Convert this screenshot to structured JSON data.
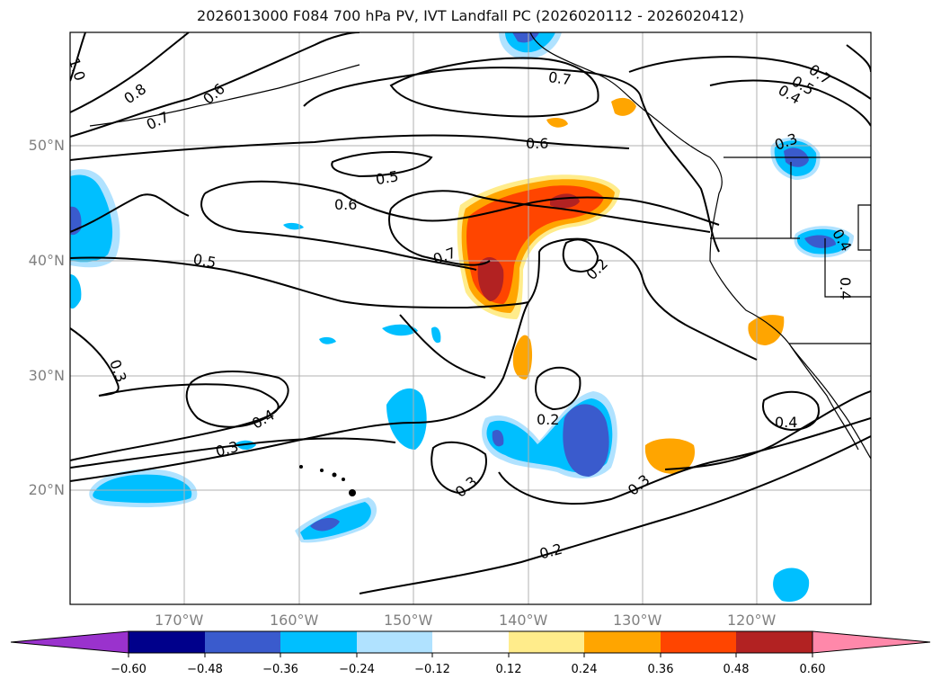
{
  "title": "2026013000 F084 700 hPa PV, IVT Landfall PC (2026020112 - 2026020412)",
  "lat_labels": [
    "50°N",
    "40°N",
    "30°N",
    "20°N"
  ],
  "lon_labels": [
    "170°W",
    "160°W",
    "150°W",
    "140°W",
    "130°W",
    "120°W"
  ],
  "contour_labels": [
    "1.0",
    "0.8",
    "0.7",
    "0.6",
    "0.7",
    "0.6",
    "0.5",
    "0.6",
    "0.5",
    "0.7",
    "0.2",
    "0.7",
    "0.5",
    "0.4",
    "0.3",
    "0.4",
    "0.4",
    "0.3",
    "0.3",
    "0.2",
    "0.3",
    "0.4",
    "0.3",
    "0.2"
  ],
  "colorbar": {
    "ticks": [
      "−0.60",
      "−0.48",
      "−0.36",
      "−0.24",
      "−0.12",
      "0.12",
      "0.24",
      "0.36",
      "0.48",
      "0.60"
    ],
    "colors": [
      "#9a32cd",
      "#00008b",
      "#3a5bcd",
      "#00bfff",
      "#b0e2ff",
      "#ffffff",
      "#ffec8b",
      "#ffa500",
      "#ff4500",
      "#b22222",
      "#ff88aa"
    ]
  }
}
